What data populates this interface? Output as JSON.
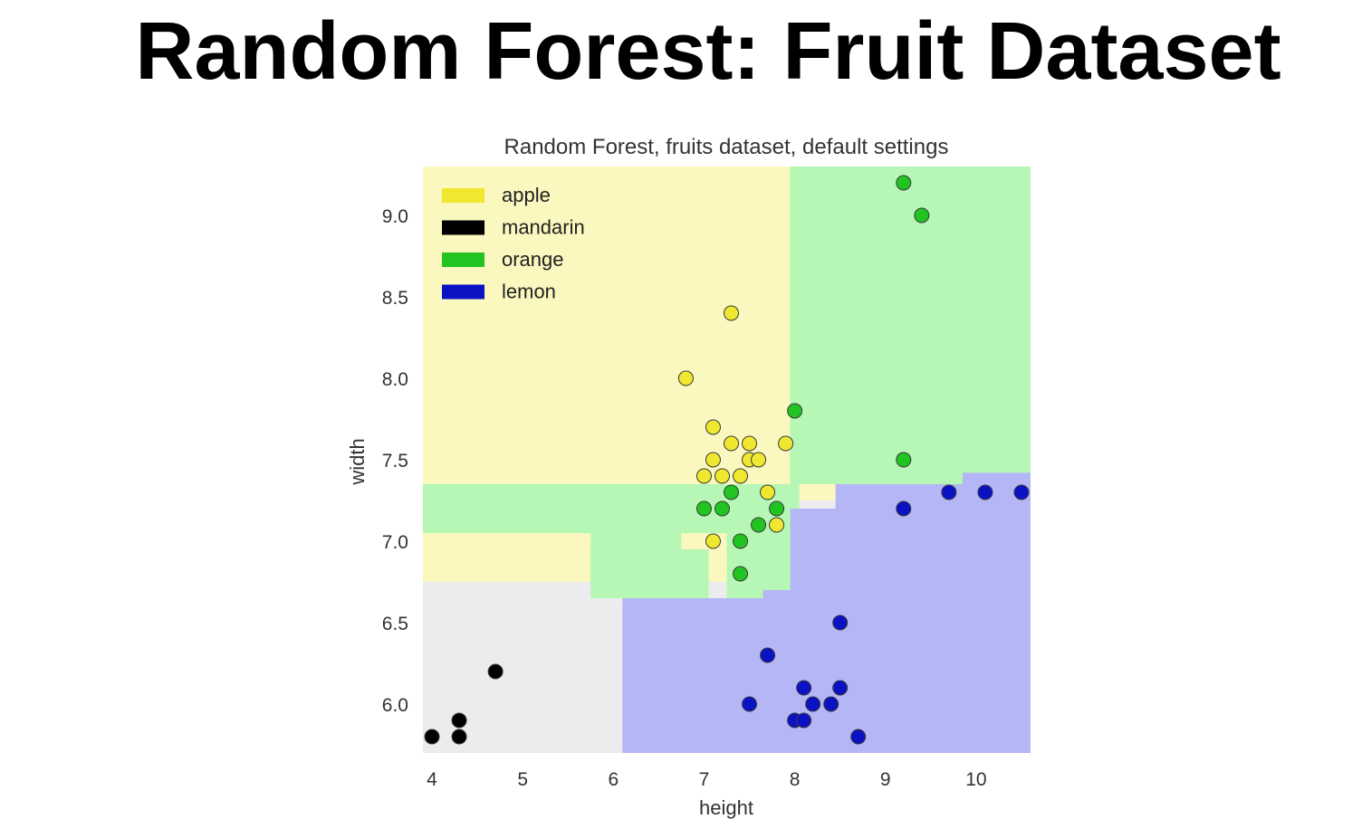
{
  "slide": {
    "title": "Random Forest:  Fruit Dataset"
  },
  "chart_data": {
    "type": "scatter",
    "title": "Random Forest, fruits dataset, default settings",
    "xlabel": "height",
    "ylabel": "width",
    "xlim": [
      3.9,
      10.6
    ],
    "ylim": [
      5.7,
      9.3
    ],
    "xticks": [
      "4",
      "5",
      "6",
      "7",
      "8",
      "9",
      "10"
    ],
    "xtick_values": [
      4,
      5,
      6,
      7,
      8,
      9,
      10
    ],
    "yticks": [
      "6.0",
      "6.5",
      "7.0",
      "7.5",
      "8.0",
      "8.5",
      "9.0"
    ],
    "ytick_values": [
      6.0,
      6.5,
      7.0,
      7.5,
      8.0,
      8.5,
      9.0
    ],
    "grid": false,
    "legend_position": "top-left",
    "classes": [
      {
        "name": "apple",
        "color": "#f0e830",
        "region_color": "#faf8be"
      },
      {
        "name": "mandarin",
        "color": "#000000",
        "region_color": "#ececee"
      },
      {
        "name": "orange",
        "color": "#22c422",
        "region_color": "#b6f7b6"
      },
      {
        "name": "lemon",
        "color": "#0b12c4",
        "region_color": "#b4b6f6"
      }
    ],
    "decision_regions": [
      {
        "class": "mandarin",
        "rects": [
          [
            3.9,
            10.6,
            5.7,
            9.3
          ]
        ]
      },
      {
        "class": "apple",
        "rects": [
          [
            3.9,
            7.95,
            6.75,
            9.3
          ],
          [
            7.95,
            8.45,
            7.25,
            7.35
          ]
        ]
      },
      {
        "class": "orange",
        "rects": [
          [
            7.95,
            10.6,
            7.35,
            9.3
          ],
          [
            3.9,
            7.75,
            7.05,
            7.35
          ],
          [
            5.75,
            7.05,
            6.65,
            6.95
          ],
          [
            5.75,
            6.75,
            6.65,
            7.35
          ],
          [
            7.25,
            8.05,
            6.65,
            7.35
          ],
          [
            8.0,
            8.05,
            6.65,
            7.25
          ]
        ]
      },
      {
        "class": "lemon",
        "rects": [
          [
            6.1,
            8.0,
            5.7,
            6.65
          ],
          [
            6.35,
            10.6,
            5.7,
            6.58
          ],
          [
            6.1,
            6.35,
            5.75,
            6.58
          ],
          [
            7.65,
            10.6,
            5.7,
            6.7
          ],
          [
            7.95,
            10.6,
            5.7,
            7.2
          ],
          [
            8.45,
            10.6,
            5.7,
            7.35
          ],
          [
            9.85,
            10.6,
            5.7,
            7.42
          ]
        ]
      }
    ],
    "series": [
      {
        "name": "apple",
        "points": [
          [
            7.3,
            8.4
          ],
          [
            6.8,
            8.0
          ],
          [
            7.1,
            7.7
          ],
          [
            7.3,
            7.6
          ],
          [
            7.5,
            7.6
          ],
          [
            7.9,
            7.6
          ],
          [
            7.1,
            7.5
          ],
          [
            7.5,
            7.5
          ],
          [
            7.6,
            7.5
          ],
          [
            7.0,
            7.4
          ],
          [
            7.2,
            7.4
          ],
          [
            7.4,
            7.4
          ],
          [
            7.7,
            7.3
          ],
          [
            7.1,
            7.0
          ],
          [
            7.8,
            7.1
          ]
        ]
      },
      {
        "name": "mandarin",
        "points": [
          [
            4.0,
            5.8
          ],
          [
            4.3,
            5.8
          ],
          [
            4.3,
            5.9
          ],
          [
            4.7,
            6.2
          ]
        ]
      },
      {
        "name": "orange",
        "points": [
          [
            9.2,
            9.2
          ],
          [
            9.4,
            9.0
          ],
          [
            8.0,
            7.8
          ],
          [
            9.2,
            7.5
          ],
          [
            7.3,
            7.3
          ],
          [
            7.0,
            7.2
          ],
          [
            7.2,
            7.2
          ],
          [
            7.8,
            7.2
          ],
          [
            7.6,
            7.1
          ],
          [
            7.4,
            7.0
          ],
          [
            7.4,
            6.8
          ]
        ]
      },
      {
        "name": "lemon",
        "points": [
          [
            9.2,
            7.2
          ],
          [
            9.7,
            7.3
          ],
          [
            10.1,
            7.3
          ],
          [
            10.5,
            7.3
          ],
          [
            8.5,
            6.5
          ],
          [
            7.7,
            6.3
          ],
          [
            8.1,
            6.1
          ],
          [
            8.5,
            6.1
          ],
          [
            7.5,
            6.0
          ],
          [
            8.2,
            6.0
          ],
          [
            8.4,
            6.0
          ],
          [
            8.0,
            5.9
          ],
          [
            8.1,
            5.9
          ],
          [
            8.7,
            5.8
          ]
        ]
      }
    ]
  }
}
